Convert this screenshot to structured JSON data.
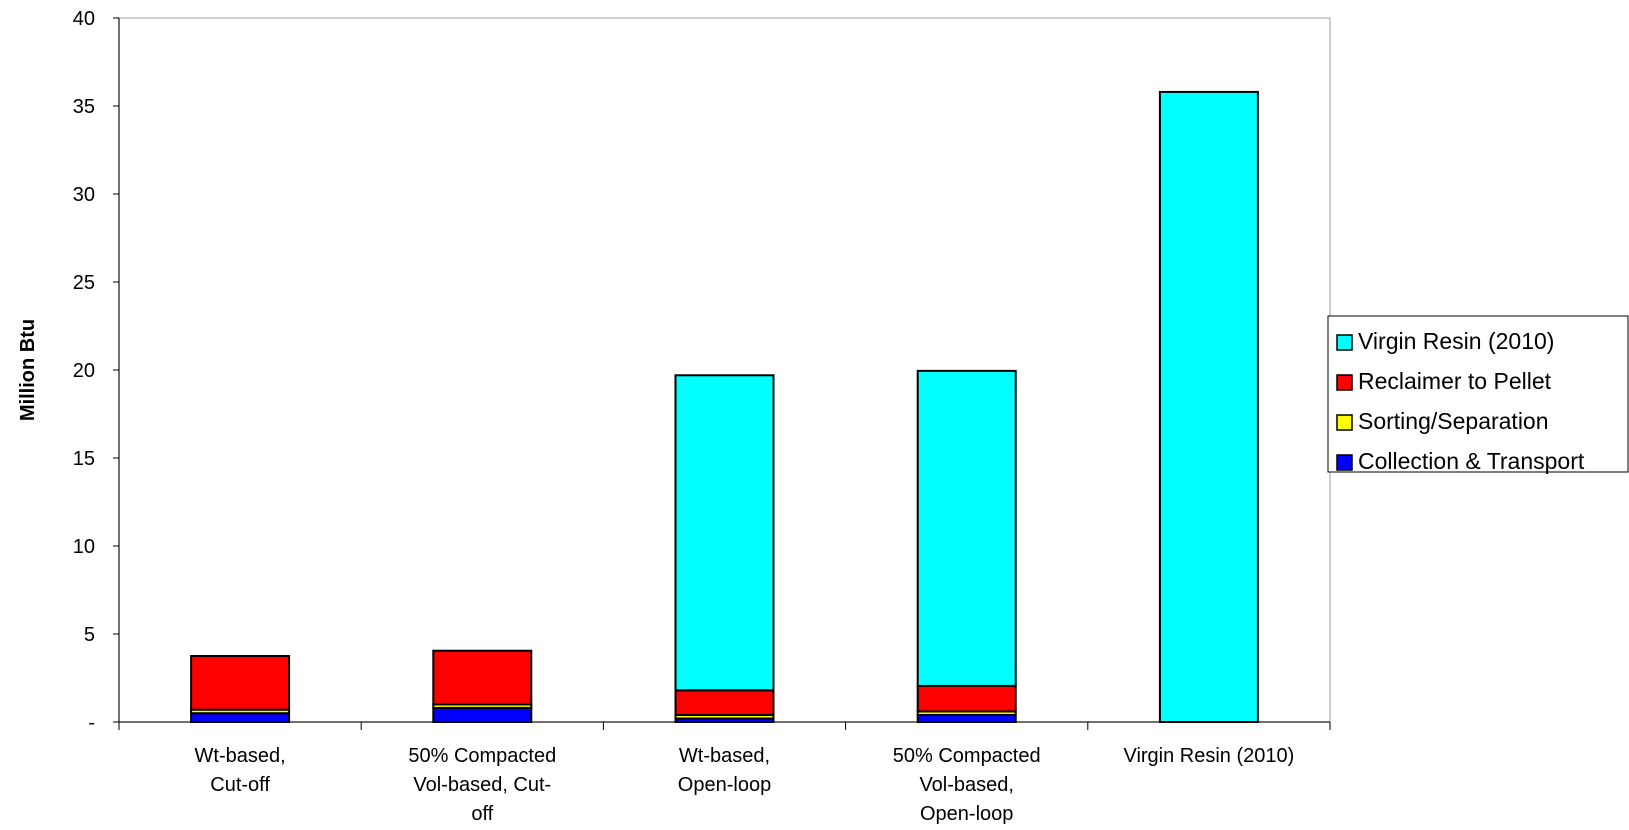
{
  "chart_data": {
    "type": "bar",
    "stacked": true,
    "ylabel": "Million Btu",
    "xlabel": "",
    "ylim": [
      0,
      40
    ],
    "yticks": [
      {
        "value": 0,
        "label": "-"
      },
      {
        "value": 5,
        "label": "5"
      },
      {
        "value": 10,
        "label": "10"
      },
      {
        "value": 15,
        "label": "15"
      },
      {
        "value": 20,
        "label": "20"
      },
      {
        "value": 25,
        "label": "25"
      },
      {
        "value": 30,
        "label": "30"
      },
      {
        "value": 35,
        "label": "35"
      },
      {
        "value": 40,
        "label": "40"
      }
    ],
    "categories": [
      [
        "Wt-based,",
        "Cut-off"
      ],
      [
        "50% Compacted",
        "Vol-based, Cut-",
        "off"
      ],
      [
        "Wt-based,",
        "Open-loop"
      ],
      [
        "50% Compacted",
        "Vol-based,",
        "Open-loop"
      ],
      [
        "Virgin Resin (2010)"
      ]
    ],
    "series": [
      {
        "name": "Collection & Transport",
        "color": "#0000ff",
        "values": [
          0.5,
          0.8,
          0.2,
          0.4,
          0
        ]
      },
      {
        "name": "Sorting/Separation",
        "color": "#ffff00",
        "values": [
          0.2,
          0.2,
          0.2,
          0.2,
          0
        ]
      },
      {
        "name": "Reclaimer to Pellet",
        "color": "#ff0000",
        "values": [
          3.05,
          3.05,
          1.4,
          1.45,
          0
        ]
      },
      {
        "name": "Virgin Resin (2010)",
        "color": "#00ffff",
        "values": [
          0,
          0,
          17.9,
          17.9,
          35.8
        ]
      }
    ],
    "legend_order": [
      "Virgin Resin (2010)",
      "Reclaimer to Pellet",
      "Sorting/Separation",
      "Collection & Transport"
    ],
    "legend_position": "right",
    "grid": false
  }
}
